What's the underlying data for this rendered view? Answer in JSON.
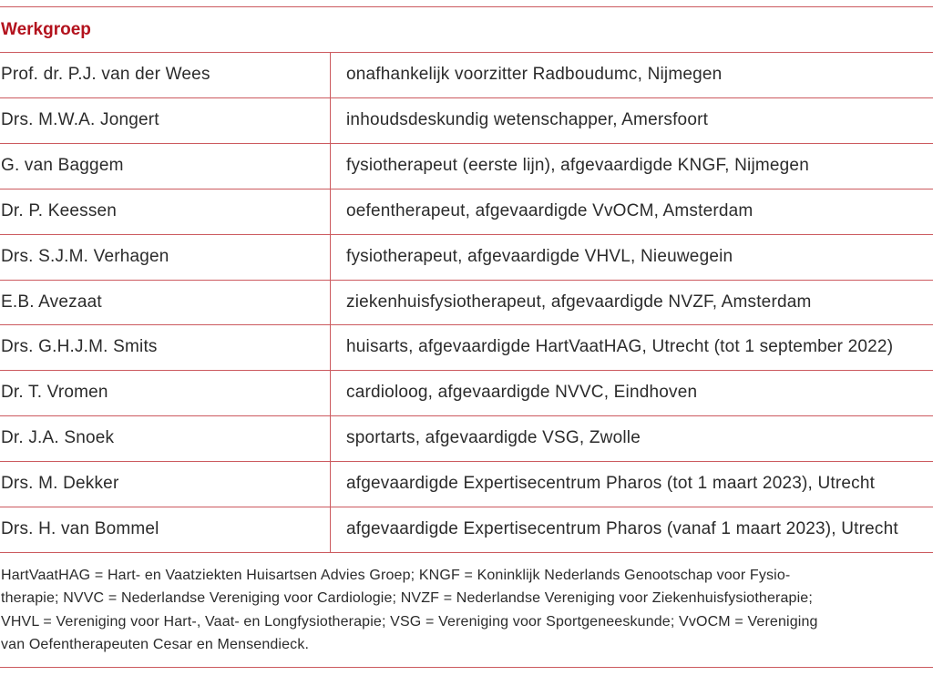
{
  "title": "Werkgroep",
  "colors": {
    "accent": "#b3121d",
    "rule": "#cc5a5f",
    "text": "#2b2b2b"
  },
  "rows": [
    {
      "name": "Prof. dr. P.J. van der Wees",
      "role": "onafhankelijk voorzitter Radboudumc, Nijmegen"
    },
    {
      "name": "Drs. M.W.A. Jongert",
      "role": "inhoudsdeskundig wetenschapper, Amersfoort"
    },
    {
      "name": "G. van Baggem",
      "role": "fysiotherapeut (eerste lijn), afgevaardigde KNGF, Nijmegen"
    },
    {
      "name": "Dr. P. Keessen",
      "role": "oefentherapeut, afgevaardigde VvOCM, Amsterdam"
    },
    {
      "name": "Drs. S.J.M. Verhagen",
      "role": "fysiotherapeut, afgevaardigde VHVL, Nieuwegein"
    },
    {
      "name": "E.B. Avezaat",
      "role": "ziekenhuisfysiotherapeut, afgevaardigde NVZF, Amsterdam"
    },
    {
      "name": "Drs. G.H.J.M. Smits",
      "role": "huisarts, afgevaardigde HartVaatHAG, Utrecht (tot 1 september 2022)"
    },
    {
      "name": "Dr. T. Vromen",
      "role": "cardioloog, afgevaardigde NVVC, Eindhoven"
    },
    {
      "name": "Dr. J.A. Snoek",
      "role": "sportarts, afgevaardigde VSG, Zwolle"
    },
    {
      "name": "Drs. M. Dekker",
      "role": "afgevaardigde Expertisecentrum Pharos (tot 1 maart 2023), Utrecht"
    },
    {
      "name": "Drs. H. van Bommel",
      "role": "afgevaardigde Expertisecentrum Pharos (vanaf 1 maart 2023), Utrecht"
    }
  ],
  "footnote_lines": [
    "HartVaatHAG = Hart- en Vaatziekten Huisartsen Advies Groep; KNGF = Koninklijk Nederlands Genootschap voor Fysio-",
    "therapie; NVVC = Nederlandse Vereniging voor Cardiologie; NVZF = Nederlandse Vereniging voor Ziekenhuisfysiotherapie;",
    "VHVL = Vereniging voor Hart-, Vaat- en Longfysiotherapie; VSG = Vereniging voor Sportgeneeskunde; VvOCM = Vereniging",
    "van Oefentherapeuten Cesar en Mensendieck."
  ]
}
